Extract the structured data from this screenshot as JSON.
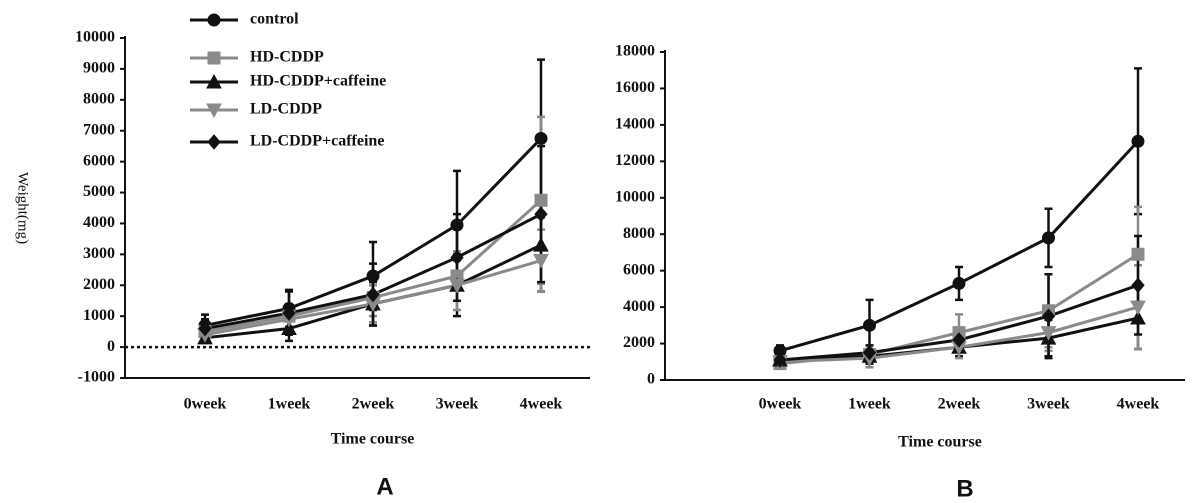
{
  "chart_data": [
    {
      "type": "line",
      "label": "A",
      "xlabel": "Time course",
      "ylabel": "Weight(mg)",
      "categories": [
        "0week",
        "1week",
        "2week",
        "3week",
        "4week"
      ],
      "ylim": [
        -1000,
        10000
      ],
      "yticks": [
        -1000,
        0,
        1000,
        2000,
        3000,
        4000,
        5000,
        6000,
        7000,
        8000,
        9000,
        10000
      ],
      "reference_line": 0,
      "legend": "upper left",
      "series": [
        {
          "name": "control",
          "color": "#111111",
          "marker": "circle",
          "values": [
            700,
            1250,
            2300,
            3950,
            6750
          ],
          "errors": [
            350,
            600,
            1100,
            1750,
            2550
          ]
        },
        {
          "name": "HD-CDDP",
          "color": "#8a8a8a",
          "marker": "square",
          "values": [
            500,
            1000,
            1600,
            2300,
            4750
          ],
          "errors": [
            200,
            400,
            600,
            800,
            2700
          ]
        },
        {
          "name": "HD-CDDP+caffeine",
          "color": "#111111",
          "marker": "triangle",
          "values": [
            300,
            600,
            1400,
            2000,
            3300
          ],
          "errors": [
            150,
            400,
            700,
            1000,
            1500
          ]
        },
        {
          "name": "LD-CDDP",
          "color": "#8a8a8a",
          "marker": "triangle-down",
          "values": [
            400,
            900,
            1400,
            2000,
            2800
          ],
          "errors": [
            200,
            400,
            600,
            800,
            1000
          ]
        },
        {
          "name": "LD-CDDP+caffeine",
          "color": "#111111",
          "marker": "diamond",
          "values": [
            600,
            1100,
            1700,
            2900,
            4300
          ],
          "errors": [
            300,
            700,
            1000,
            1400,
            2200
          ]
        }
      ]
    },
    {
      "type": "line",
      "label": "B",
      "xlabel": "Time course",
      "categories": [
        "0week",
        "1week",
        "2week",
        "3week",
        "4week"
      ],
      "ylim": [
        0,
        18000
      ],
      "yticks": [
        0,
        2000,
        4000,
        6000,
        8000,
        10000,
        12000,
        14000,
        16000,
        18000
      ],
      "series": [
        {
          "name": "control",
          "color": "#111111",
          "marker": "circle",
          "values": [
            1600,
            3000,
            5300,
            7800,
            13100
          ],
          "errors": [
            300,
            1400,
            900,
            1600,
            4000
          ]
        },
        {
          "name": "HD-CDDP",
          "color": "#8a8a8a",
          "marker": "square",
          "values": [
            900,
            1400,
            2600,
            3800,
            6900
          ],
          "errors": [
            200,
            500,
            1000,
            2000,
            2600
          ]
        },
        {
          "name": "HD-CDDP+caffeine",
          "color": "#111111",
          "marker": "triangle",
          "values": [
            1100,
            1300,
            1800,
            2300,
            3400
          ],
          "errors": [
            200,
            400,
            500,
            1000,
            1700
          ]
        },
        {
          "name": "LD-CDDP",
          "color": "#8a8a8a",
          "marker": "triangle-down",
          "values": [
            1000,
            1200,
            1800,
            2600,
            4000
          ],
          "errors": [
            200,
            500,
            600,
            1000,
            2300
          ]
        },
        {
          "name": "LD-CDDP+caffeine",
          "color": "#111111",
          "marker": "diamond",
          "values": [
            1100,
            1500,
            2200,
            3500,
            5200
          ],
          "errors": [
            200,
            400,
            600,
            2300,
            2700
          ]
        }
      ]
    }
  ]
}
